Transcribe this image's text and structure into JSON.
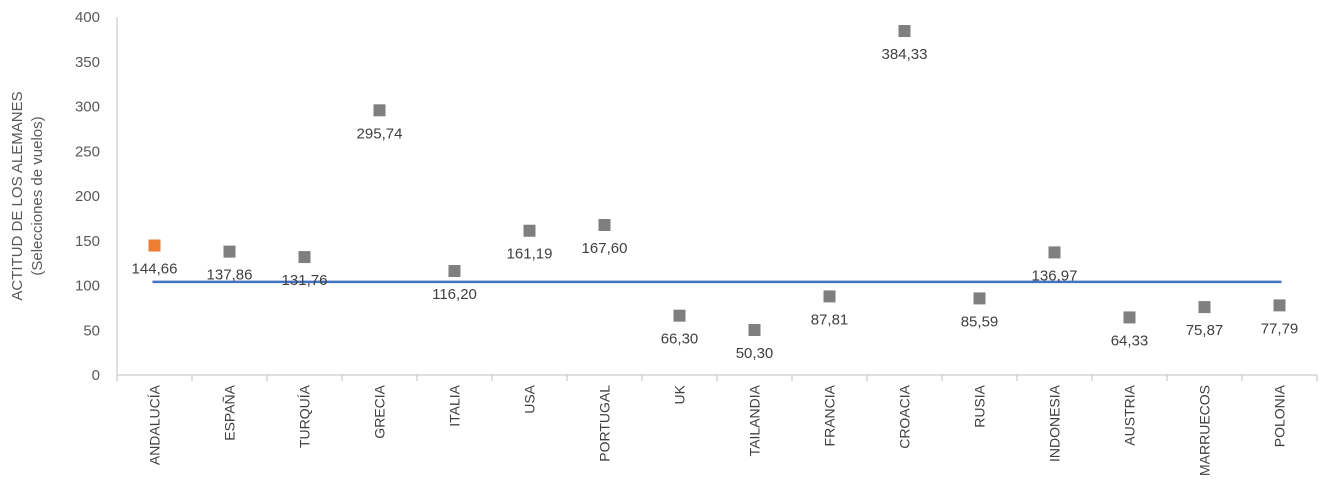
{
  "chart_data": {
    "type": "scatter",
    "categories": [
      "ANDALUCÍA",
      "ESPAÑA",
      "TURQUÍA",
      "GRECIA",
      "ITALIA",
      "USA",
      "PORTUGAL",
      "UK",
      "TAILANDIA",
      "FRANCIA",
      "CROACIA",
      "RUSIA",
      "INDONESIA",
      "AUSTRIA",
      "MARRUECOS",
      "POLONIA"
    ],
    "values": [
      144.66,
      137.86,
      131.76,
      295.74,
      116.2,
      161.19,
      167.6,
      66.3,
      50.3,
      87.81,
      384.33,
      85.59,
      136.97,
      64.33,
      75.87,
      77.79
    ],
    "data_labels": [
      "144,66",
      "137,86",
      "131,76",
      "295,74",
      "116,20",
      "161,19",
      "167,60",
      "66,30",
      "50,30",
      "87,81",
      "384,33",
      "85,59",
      "136,97",
      "64,33",
      "75,87",
      "77,79"
    ],
    "reference_line": 104,
    "ylabel_line1": "ACTITUD DE LOS ALEMANES",
    "ylabel_line2": "(Selecciones de vuelos)",
    "ylim": [
      0,
      400
    ],
    "yticks": [
      "0",
      "50",
      "100",
      "150",
      "200",
      "250",
      "300",
      "350",
      "400"
    ],
    "highlight_category": "ANDALUCÍA",
    "colors": {
      "highlight": "#ED7D31",
      "marker": "#7F7F7F",
      "line": "#4472C4",
      "axis": "#BFBFBF"
    },
    "grid": false,
    "legend": "none"
  }
}
